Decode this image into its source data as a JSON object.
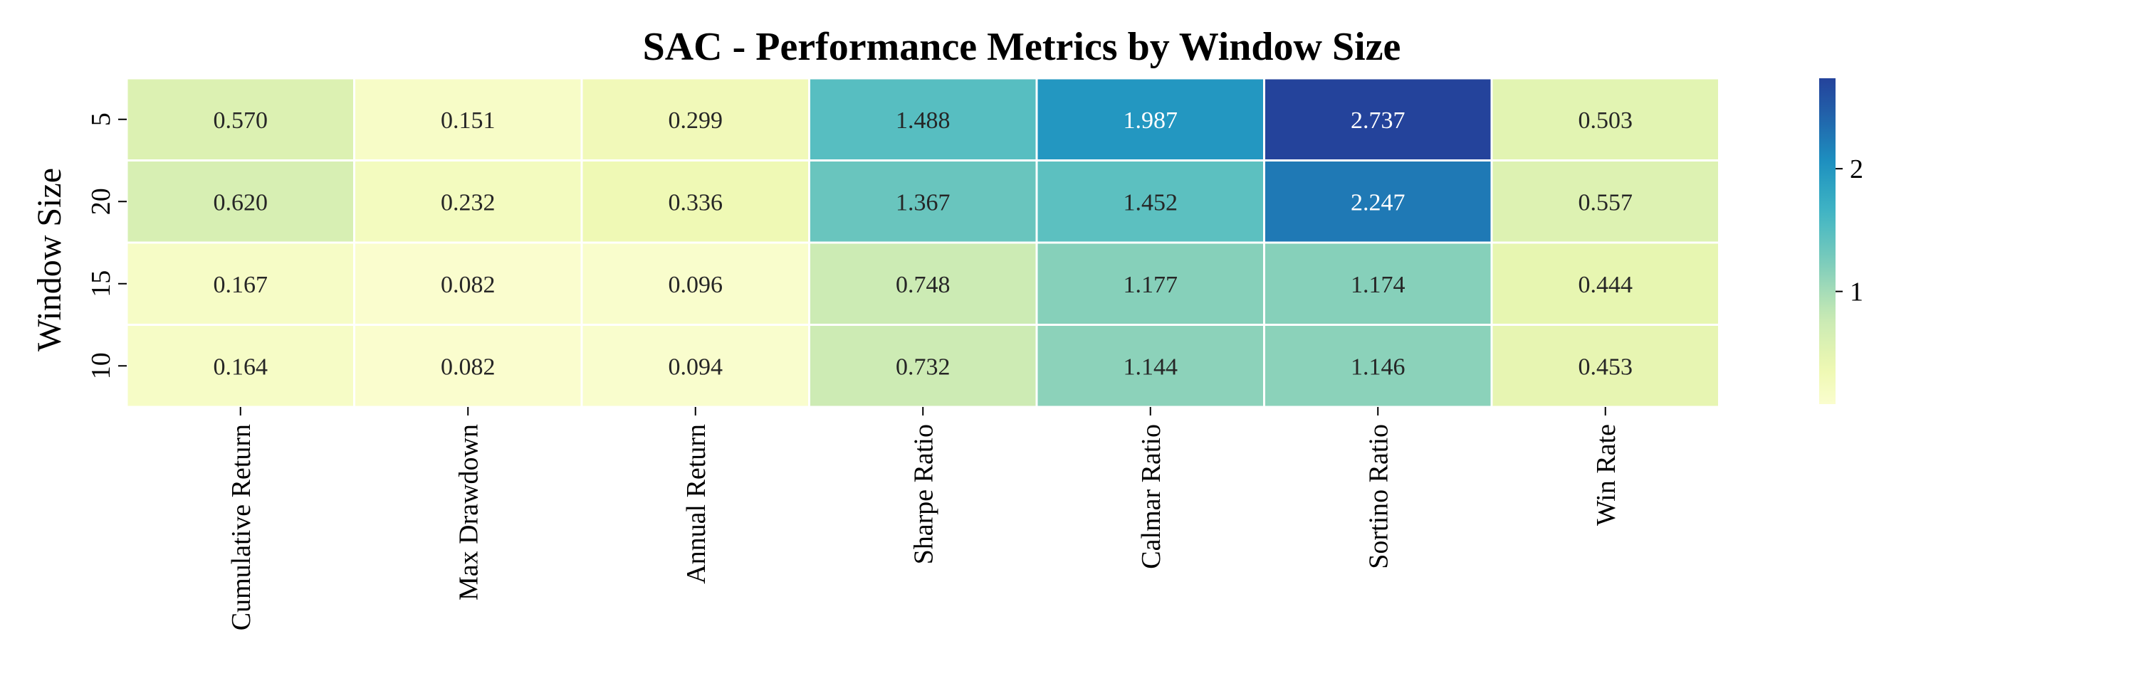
{
  "chart_data": {
    "type": "heatmap",
    "title": "SAC - Performance Metrics by Window Size",
    "xlabel": "",
    "ylabel": "Window Size",
    "x_categories": [
      "Cumulative Return",
      "Max Drawdown",
      "Annual Return",
      "Sharpe Ratio",
      "Calmar Ratio",
      "Sortino Ratio",
      "Win Rate"
    ],
    "y_categories": [
      "5",
      "20",
      "15",
      "10"
    ],
    "values": [
      [
        0.57,
        0.151,
        0.299,
        1.488,
        1.987,
        2.737,
        0.503
      ],
      [
        0.62,
        0.232,
        0.336,
        1.367,
        1.452,
        2.247,
        0.557
      ],
      [
        0.167,
        0.082,
        0.096,
        0.748,
        1.177,
        1.174,
        0.444
      ],
      [
        0.164,
        0.082,
        0.094,
        0.732,
        1.144,
        1.146,
        0.453
      ]
    ],
    "value_format": "0.000",
    "colormap": "YlGnBu",
    "color_range": [
      0.082,
      2.737
    ],
    "colorbar_ticks": [
      "1",
      "2"
    ],
    "cell_borders": "white",
    "legend": "colorbar-right"
  }
}
